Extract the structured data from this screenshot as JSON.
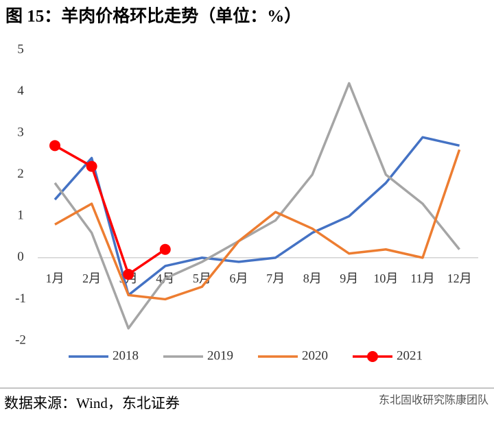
{
  "chart_data": {
    "type": "line",
    "title": "图 15：羊肉价格环比走势（单位：%）",
    "source": "数据来源：Wind，东北证券",
    "watermark": "东北固收研究陈康团队",
    "categories": [
      "1月",
      "2月",
      "3月",
      "4月",
      "5月",
      "6月",
      "7月",
      "8月",
      "9月",
      "10月",
      "11月",
      "12月"
    ],
    "series": [
      {
        "name": "2018",
        "color": "#4472c4",
        "values": [
          1.4,
          2.4,
          -0.9,
          -0.2,
          0,
          -0.1,
          0,
          0.6,
          1.0,
          1.8,
          2.9,
          2.7
        ]
      },
      {
        "name": "2019",
        "color": "#a5a5a5",
        "values": [
          1.8,
          0.6,
          -1.7,
          -0.5,
          -0.1,
          0.4,
          0.9,
          2.0,
          4.2,
          2.0,
          1.3,
          0.2
        ]
      },
      {
        "name": "2020",
        "color": "#ed7d31",
        "values": [
          0.8,
          1.3,
          -0.9,
          -1.0,
          -0.7,
          0.4,
          1.1,
          0.7,
          0.1,
          0.2,
          0.0,
          2.6
        ]
      },
      {
        "name": "2021",
        "color": "#ff0000",
        "markers": true,
        "values": [
          2.7,
          2.2,
          -0.4,
          0.2,
          null,
          null,
          null,
          null,
          null,
          null,
          null,
          null
        ]
      }
    ],
    "ylim": [
      -2,
      5
    ],
    "yticks": [
      -2,
      -1,
      0,
      1,
      2,
      3,
      4,
      5
    ],
    "grid": false,
    "legend": "bottom"
  }
}
